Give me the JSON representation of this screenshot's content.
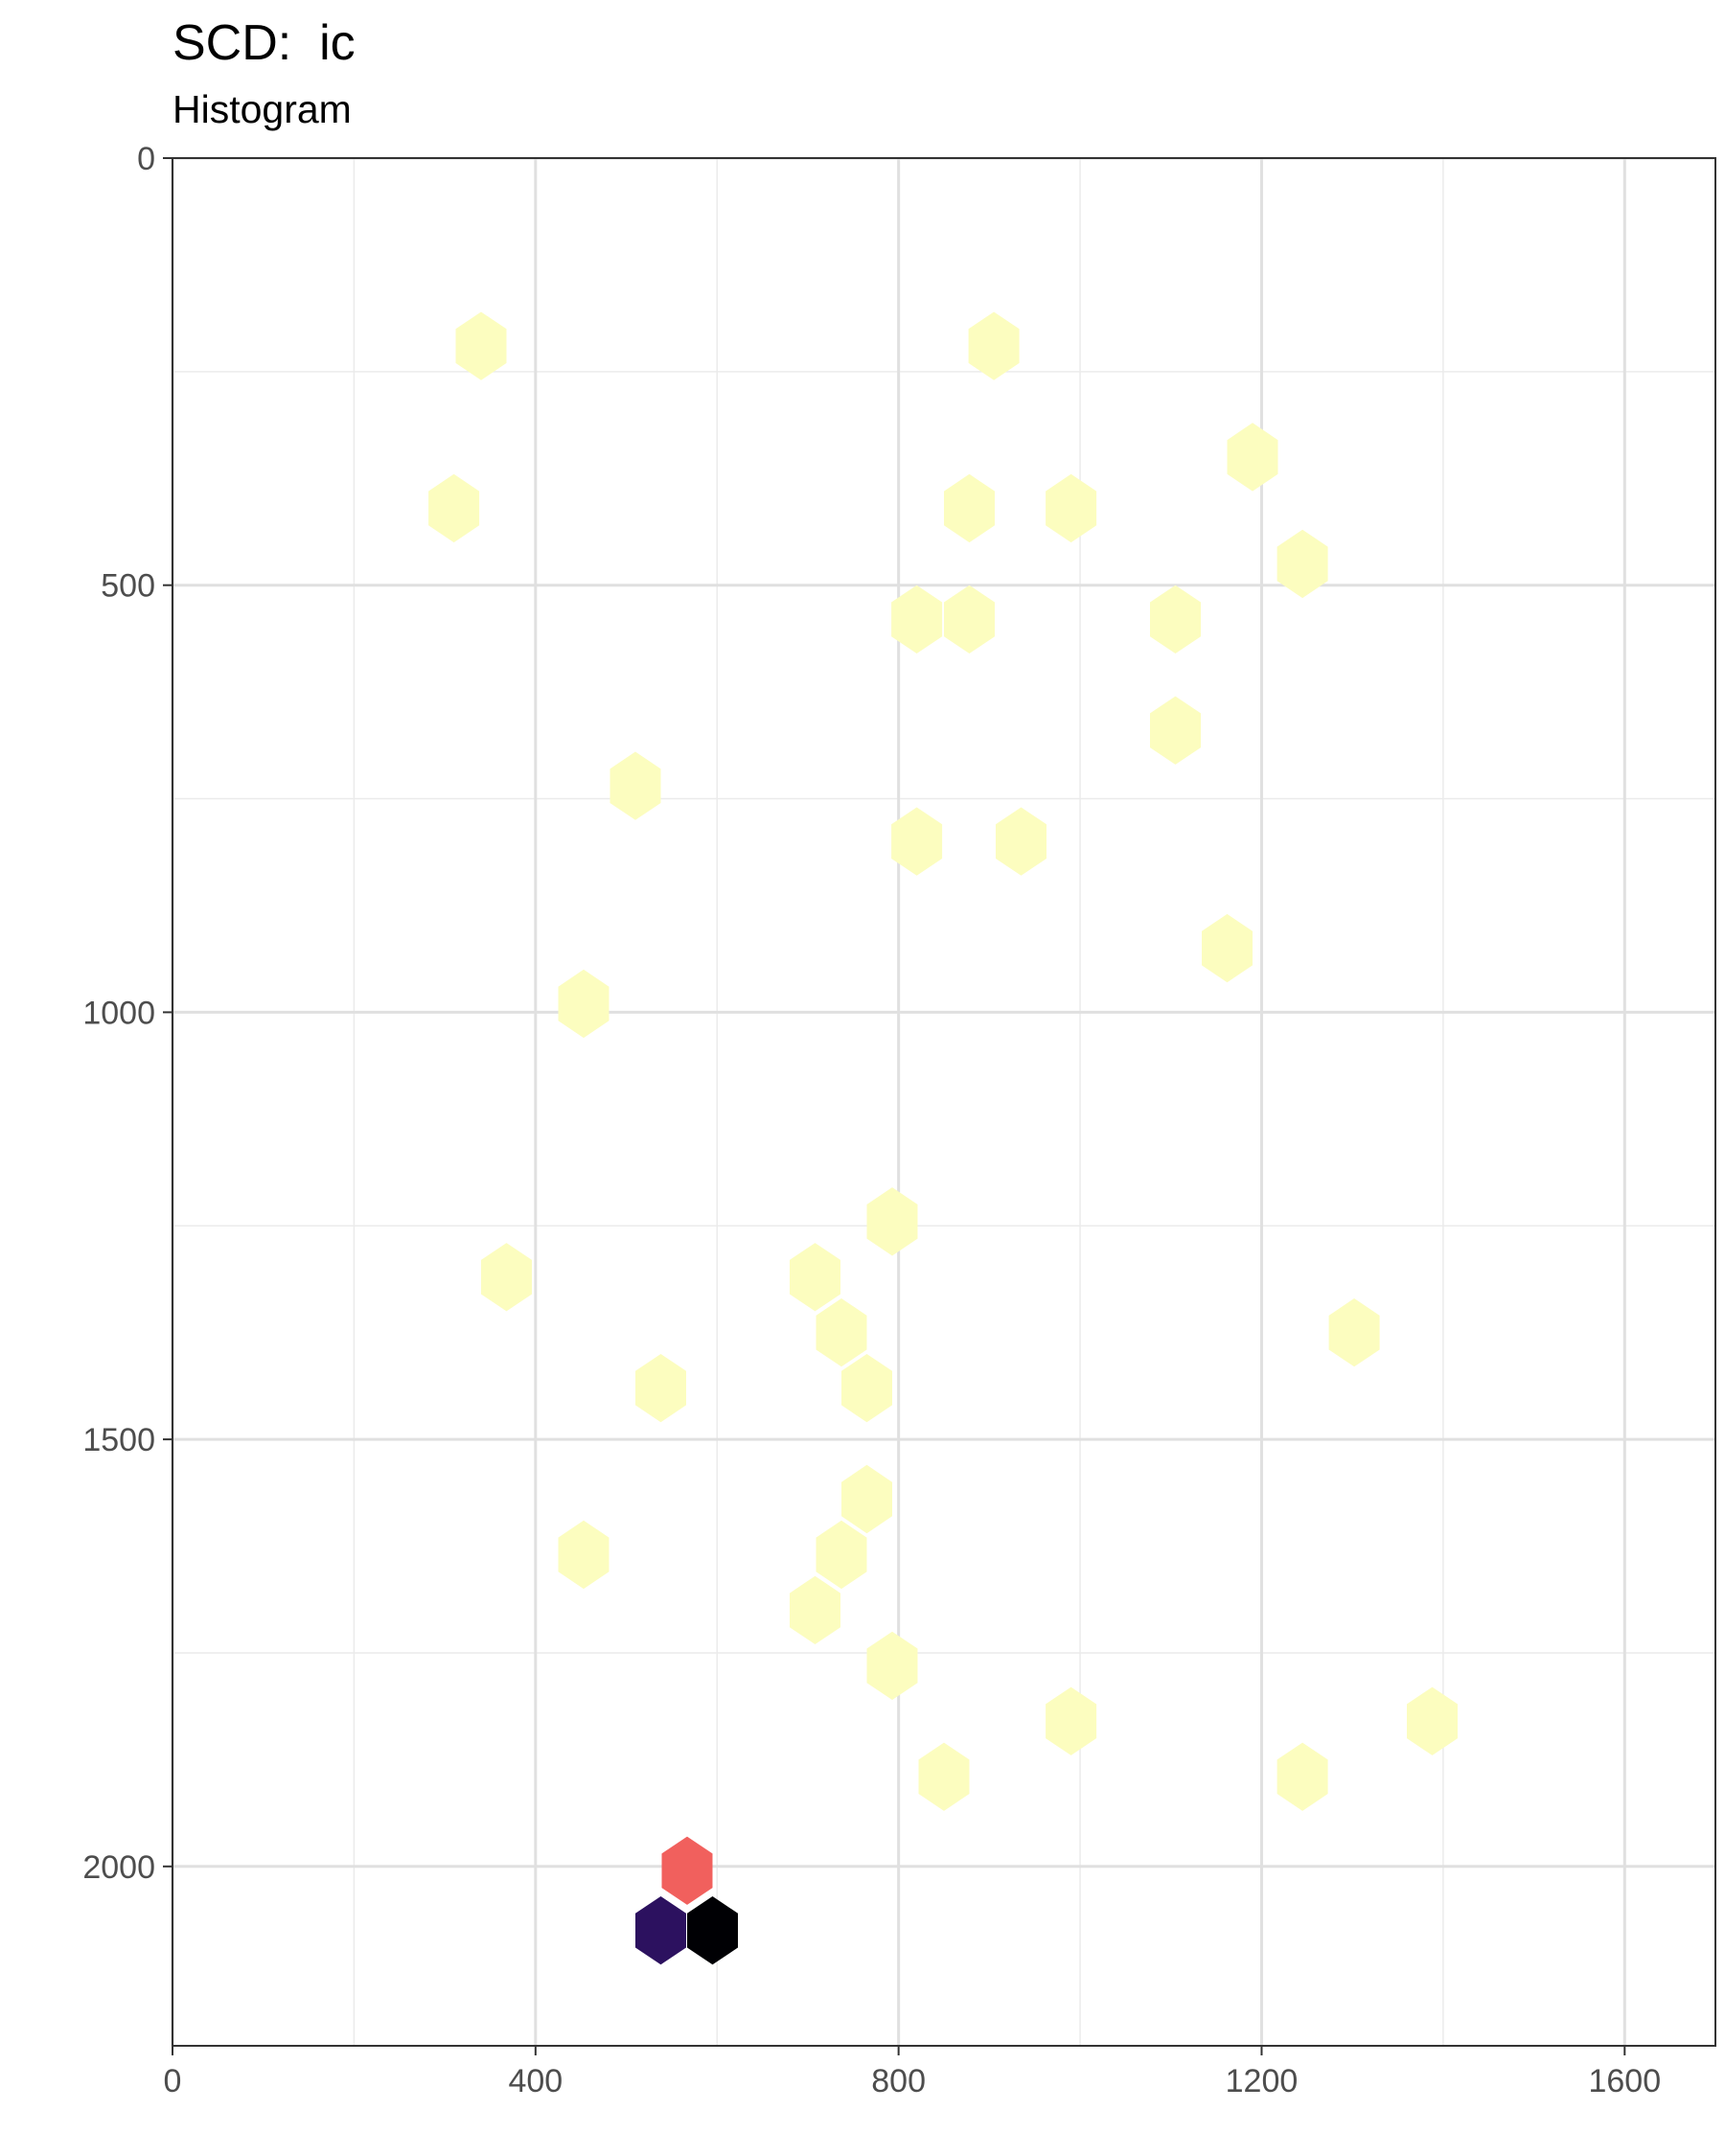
{
  "chart_data": {
    "type": "hexbin",
    "title": "SCD:  ic",
    "subtitle": "Histogram",
    "xlabel": "",
    "ylabel": "",
    "xlim": [
      0,
      1700
    ],
    "ylim": [
      2210,
      0
    ],
    "y_reversed": true,
    "grid": true,
    "x_ticks": [
      {
        "value": 0,
        "label": "0"
      },
      {
        "value": 400,
        "label": "400"
      },
      {
        "value": 800,
        "label": "800"
      },
      {
        "value": 1200,
        "label": "1200"
      },
      {
        "value": 1600,
        "label": "1600"
      }
    ],
    "y_ticks": [
      {
        "value": 0,
        "label": "0"
      },
      {
        "value": 500,
        "label": "500"
      },
      {
        "value": 1000,
        "label": "1000"
      },
      {
        "value": 1500,
        "label": "1500"
      },
      {
        "value": 2000,
        "label": "2000"
      }
    ],
    "x_minor_grid": [
      200,
      600,
      1000,
      1400
    ],
    "y_minor_grid": [
      250,
      750,
      1250,
      1750
    ],
    "hex_width": 56,
    "hex_height": 80,
    "color_scale": "magma",
    "hexbins": [
      {
        "x": 340,
        "y": 220,
        "color": "#fcfdbf"
      },
      {
        "x": 905,
        "y": 220,
        "color": "#fcfdbf"
      },
      {
        "x": 1190,
        "y": 350,
        "color": "#fcfdbf"
      },
      {
        "x": 310,
        "y": 410,
        "color": "#fcfdbf"
      },
      {
        "x": 878,
        "y": 410,
        "color": "#fcfdbf"
      },
      {
        "x": 990,
        "y": 410,
        "color": "#fcfdbf"
      },
      {
        "x": 1245,
        "y": 475,
        "color": "#fcfdbf"
      },
      {
        "x": 820,
        "y": 540,
        "color": "#fcfdbf"
      },
      {
        "x": 878,
        "y": 540,
        "color": "#fcfdbf"
      },
      {
        "x": 1105,
        "y": 540,
        "color": "#fcfdbf"
      },
      {
        "x": 1105,
        "y": 670,
        "color": "#fcfdbf"
      },
      {
        "x": 510,
        "y": 735,
        "color": "#fcfdbf"
      },
      {
        "x": 820,
        "y": 800,
        "color": "#fcfdbf"
      },
      {
        "x": 935,
        "y": 800,
        "color": "#fcfdbf"
      },
      {
        "x": 1162,
        "y": 925,
        "color": "#fcfdbf"
      },
      {
        "x": 453,
        "y": 990,
        "color": "#fcfdbf"
      },
      {
        "x": 793,
        "y": 1245,
        "color": "#fcfdbf"
      },
      {
        "x": 368,
        "y": 1310,
        "color": "#fcfdbf"
      },
      {
        "x": 708,
        "y": 1310,
        "color": "#fcfdbf"
      },
      {
        "x": 737,
        "y": 1375,
        "color": "#fcfdbf"
      },
      {
        "x": 1302,
        "y": 1375,
        "color": "#fcfdbf"
      },
      {
        "x": 538,
        "y": 1440,
        "color": "#fcfdbf"
      },
      {
        "x": 765,
        "y": 1440,
        "color": "#fcfdbf"
      },
      {
        "x": 765,
        "y": 1570,
        "color": "#fcfdbf"
      },
      {
        "x": 453,
        "y": 1635,
        "color": "#fcfdbf"
      },
      {
        "x": 737,
        "y": 1635,
        "color": "#fcfdbf"
      },
      {
        "x": 708,
        "y": 1700,
        "color": "#fcfdbf"
      },
      {
        "x": 793,
        "y": 1765,
        "color": "#fcfdbf"
      },
      {
        "x": 990,
        "y": 1830,
        "color": "#fcfdbf"
      },
      {
        "x": 1388,
        "y": 1830,
        "color": "#fcfdbf"
      },
      {
        "x": 850,
        "y": 1895,
        "color": "#fcfdbf"
      },
      {
        "x": 1245,
        "y": 1895,
        "color": "#fcfdbf"
      },
      {
        "x": 567,
        "y": 2005,
        "color": "#f1605d"
      },
      {
        "x": 538,
        "y": 2075,
        "color": "#2c115f"
      },
      {
        "x": 595,
        "y": 2075,
        "color": "#000004"
      }
    ]
  }
}
